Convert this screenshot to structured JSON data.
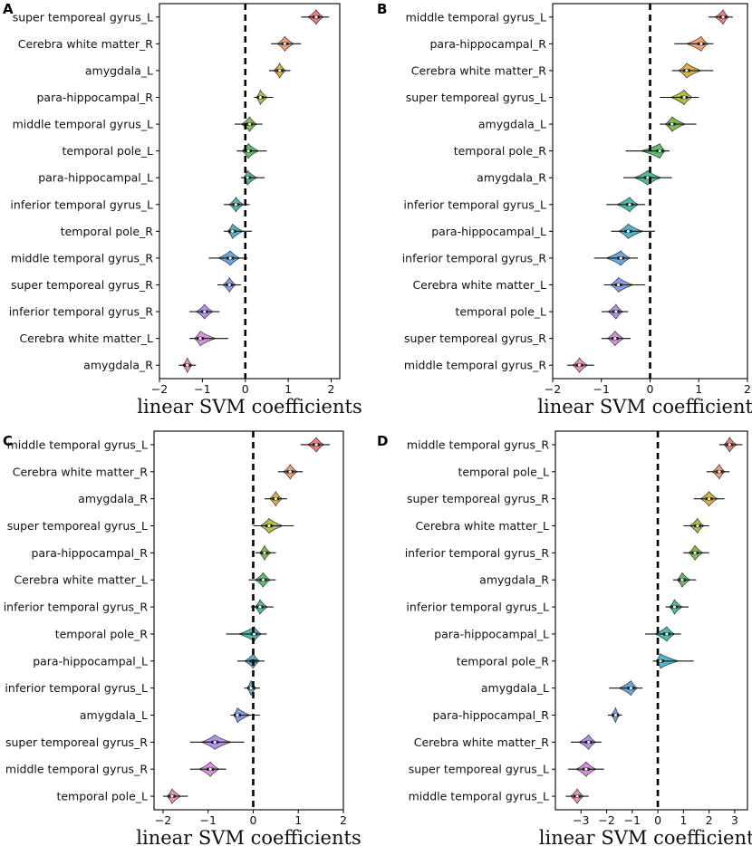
{
  "palette": [
    "#f07c7c",
    "#f2a070",
    "#d9b24a",
    "#b4be44",
    "#7fbf4e",
    "#5fbd6f",
    "#4fbd8f",
    "#4bbbb0",
    "#4cb6cc",
    "#67a7de",
    "#8b9ceb",
    "#b491ec",
    "#d990e0",
    "#ef8fc2"
  ],
  "chart_data": [
    {
      "type": "violin",
      "panel": "A",
      "xlabel": "linear SVM coefficients",
      "xlim": [
        -2,
        2.2
      ],
      "xticks": [
        -2,
        -1,
        0,
        1,
        2
      ],
      "xtick_labels": [
        "−2",
        "−1",
        "0",
        "1",
        "2"
      ],
      "reference_line": 0,
      "categories": [
        "super temporeal gyrus_L",
        "Cerebra white matter_R",
        "amygdala_L",
        "para-hippocampal_R",
        "middle temporal gyrus_L",
        "temporal pole_L",
        "para-hippocampal_L",
        "inferior temporal gyrus_L",
        "temporal pole_R",
        "middle temporal gyrus_R",
        "super temporeal gyrus_R",
        "inferior temporal gyrus_R",
        "Cerebra white matter_L",
        "amygdala_R"
      ],
      "median": [
        1.65,
        0.92,
        0.8,
        0.35,
        0.1,
        0.07,
        0.05,
        -0.22,
        -0.3,
        -0.35,
        -0.37,
        -0.95,
        -1.05,
        -1.35
      ],
      "range": [
        [
          1.3,
          1.95
        ],
        [
          0.6,
          1.3
        ],
        [
          0.55,
          1.05
        ],
        [
          0.2,
          0.65
        ],
        [
          -0.25,
          0.4
        ],
        [
          -0.2,
          0.5
        ],
        [
          -0.1,
          0.45
        ],
        [
          -0.5,
          0.1
        ],
        [
          -0.5,
          0.15
        ],
        [
          -0.85,
          0.05
        ],
        [
          -0.65,
          -0.1
        ],
        [
          -1.3,
          -0.6
        ],
        [
          -1.3,
          -0.4
        ],
        [
          -1.55,
          -1.15
        ]
      ]
    },
    {
      "type": "violin",
      "panel": "B",
      "xlabel": "linear SVM coefficients",
      "xlim": [
        -2,
        2
      ],
      "xticks": [
        -2,
        -1,
        0,
        1,
        2
      ],
      "xtick_labels": [
        "−2",
        "−1",
        "0",
        "1",
        "2"
      ],
      "reference_line": 0,
      "categories": [
        "middle temporal gyrus_L",
        "para-hippocampal_R",
        "Cerebra white matter_R",
        "super temporeal gyrus_L",
        "amygdala_L",
        "temporal pole_R",
        "amygdala_R",
        "inferior temporal gyrus_L",
        "para-hippocampal_L",
        "inferior temporal gyrus_R",
        "Cerebra white matter_L",
        "temporal pole_L",
        "super temporeal gyrus_R",
        "middle temporal gyrus_R"
      ],
      "median": [
        1.5,
        1.05,
        0.75,
        0.7,
        0.45,
        0.2,
        -0.05,
        -0.42,
        -0.45,
        -0.6,
        -0.65,
        -0.7,
        -0.72,
        -1.45
      ],
      "range": [
        [
          1.2,
          1.7
        ],
        [
          0.5,
          1.3
        ],
        [
          0.45,
          1.3
        ],
        [
          0.2,
          1.0
        ],
        [
          0.2,
          0.95
        ],
        [
          -0.5,
          0.4
        ],
        [
          -0.55,
          0.45
        ],
        [
          -0.9,
          -0.1
        ],
        [
          -0.8,
          0.1
        ],
        [
          -1.15,
          -0.25
        ],
        [
          -0.95,
          -0.1
        ],
        [
          -1.0,
          -0.45
        ],
        [
          -1.0,
          -0.4
        ],
        [
          -1.7,
          -1.15
        ]
      ]
    },
    {
      "type": "violin",
      "panel": "C",
      "xlabel": "linear SVM coefficients",
      "xlim": [
        -2.2,
        2
      ],
      "xticks": [
        -2,
        -1,
        0,
        1,
        2
      ],
      "xtick_labels": [
        "−2",
        "−1",
        "0",
        "1",
        "2"
      ],
      "reference_line": 0,
      "categories": [
        "middle temporal gyrus_L",
        "Cerebra white matter_R",
        "amygdala_R",
        "super temporeal gyrus_L",
        "para-hippocampal_R",
        "Cerebra white matter_L",
        "inferior temporal gyrus_R",
        "temporal pole_R",
        "para-hippocampal_L",
        "inferior temporal gyrus_L",
        "amygdala_L",
        "super temporeal gyrus_R",
        "middle temporal gyrus_R",
        "temporal pole_L"
      ],
      "median": [
        1.4,
        0.82,
        0.5,
        0.35,
        0.25,
        0.22,
        0.15,
        0.02,
        0.0,
        -0.05,
        -0.35,
        -0.85,
        -0.95,
        -1.8
      ],
      "range": [
        [
          1.05,
          1.7
        ],
        [
          0.55,
          1.1
        ],
        [
          0.25,
          0.75
        ],
        [
          0.0,
          0.9
        ],
        [
          0.05,
          0.5
        ],
        [
          -0.1,
          0.5
        ],
        [
          -0.05,
          0.45
        ],
        [
          -0.6,
          0.3
        ],
        [
          -0.35,
          0.25
        ],
        [
          -0.2,
          0.15
        ],
        [
          -0.5,
          0.15
        ],
        [
          -1.4,
          -0.2
        ],
        [
          -1.4,
          -0.6
        ],
        [
          -2.0,
          -1.45
        ]
      ]
    },
    {
      "type": "violin",
      "panel": "D",
      "xlabel": "linear SVM coefficients",
      "xlim": [
        -4,
        3.5
      ],
      "xticks": [
        -3,
        -2,
        -1,
        0,
        1,
        2,
        3
      ],
      "xtick_labels": [
        "−3",
        "−2",
        "−1",
        "0",
        "1",
        "2",
        "3"
      ],
      "reference_line": 0,
      "categories": [
        "middle temporal gyrus_R",
        "temporal pole_L",
        "super temporeal gyrus_R",
        "Cerebra white matter_L",
        "inferior temporal gyrus_R",
        "amygdala_R",
        "inferior temporal gyrus_L",
        "para-hippocampal_L",
        "temporal pole_R",
        "amygdala_L",
        "para-hippocampal_R",
        "Cerebra white matter_R",
        "super temporeal gyrus_L",
        "middle temporal gyrus_L"
      ],
      "median": [
        2.8,
        2.4,
        2.0,
        1.55,
        1.45,
        0.95,
        0.65,
        0.35,
        0.1,
        -1.05,
        -1.65,
        -2.7,
        -2.8,
        -3.15
      ],
      "range": [
        [
          2.4,
          3.3
        ],
        [
          1.9,
          2.8
        ],
        [
          1.4,
          2.6
        ],
        [
          1.0,
          2.0
        ],
        [
          1.0,
          2.0
        ],
        [
          0.6,
          1.5
        ],
        [
          0.3,
          1.2
        ],
        [
          -0.5,
          0.9
        ],
        [
          -0.2,
          1.4
        ],
        [
          -1.9,
          -0.6
        ],
        [
          -1.95,
          -1.4
        ],
        [
          -3.4,
          -2.2
        ],
        [
          -3.5,
          -2.1
        ],
        [
          -3.6,
          -2.7
        ]
      ]
    }
  ]
}
